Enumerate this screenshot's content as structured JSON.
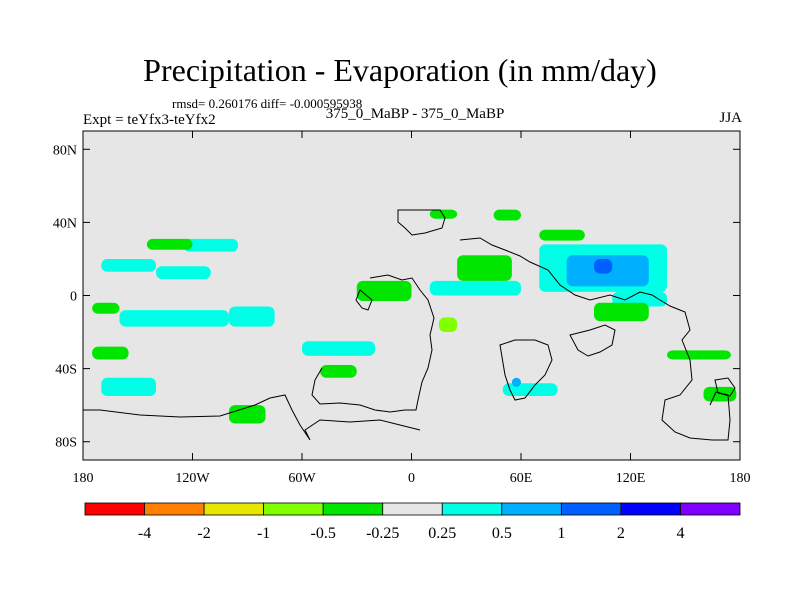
{
  "chart_data": {
    "type": "filled contour map",
    "title": "Precipitation - Evaporation (in mm/day)",
    "stats_label": "rmsd= 0.260176 diff= -0.000595938",
    "left_label": "Expt = teYfx3-teYfx2",
    "center_label": "375_0_MaBP - 375_0_MaBP",
    "right_label": "JJA",
    "xlim": [
      -180,
      180
    ],
    "ylim": [
      -90,
      90
    ],
    "x_ticks": [
      {
        "value": -180,
        "label": "180"
      },
      {
        "value": -120,
        "label": "120W"
      },
      {
        "value": -60,
        "label": "60W"
      },
      {
        "value": 0,
        "label": "0"
      },
      {
        "value": 60,
        "label": "60E"
      },
      {
        "value": 120,
        "label": "120E"
      },
      {
        "value": 180,
        "label": "180"
      }
    ],
    "y_ticks": [
      {
        "value": 80,
        "label": "80N"
      },
      {
        "value": 40,
        "label": "40N"
      },
      {
        "value": 0,
        "label": "0"
      },
      {
        "value": -40,
        "label": "40S"
      },
      {
        "value": -80,
        "label": "80S"
      }
    ],
    "colorbar": {
      "levels": [
        "-4",
        "-2",
        "-1",
        "-0.5",
        "-0.25",
        "0.25",
        "0.5",
        "1",
        "2",
        "4"
      ],
      "colors": [
        "#ff0000",
        "#ff8000",
        "#e6e600",
        "#80ff00",
        "#00e600",
        "#e6e6e6",
        "#00ffe6",
        "#00b0ff",
        "#0060ff",
        "#0000ff",
        "#8000ff"
      ]
    },
    "background_color": "#e6e6e6",
    "coastline_color": "#000000",
    "regions": [
      {
        "level": "0.25 to 0.5",
        "lon": [
          -170,
          -140
        ],
        "lat": [
          13,
          20
        ]
      },
      {
        "level": "0.25 to 0.5",
        "lon": [
          -140,
          -110
        ],
        "lat": [
          9,
          16
        ]
      },
      {
        "level": "0.25 to 0.5",
        "lon": [
          -125,
          -95
        ],
        "lat": [
          24,
          31
        ]
      },
      {
        "level": "0.25 to 0.5",
        "lon": [
          -160,
          -100
        ],
        "lat": [
          -17,
          -8
        ]
      },
      {
        "level": "0.25 to 0.5",
        "lon": [
          -100,
          -75
        ],
        "lat": [
          -17,
          -6
        ]
      },
      {
        "level": "0.25 to 0.5",
        "lon": [
          -60,
          -20
        ],
        "lat": [
          -33,
          -25
        ]
      },
      {
        "level": "0.25 to 0.5",
        "lon": [
          10,
          60
        ],
        "lat": [
          0,
          8
        ]
      },
      {
        "level": "0.25 to 0.5",
        "lon": [
          70,
          140
        ],
        "lat": [
          2,
          28
        ]
      },
      {
        "level": "0.25 to 0.5",
        "lon": [
          110,
          140
        ],
        "lat": [
          -6,
          2
        ]
      },
      {
        "level": "0.25 to 0.5",
        "lon": [
          -170,
          -140
        ],
        "lat": [
          -55,
          -45
        ]
      },
      {
        "level": "0.25 to 0.5",
        "lon": [
          50,
          80
        ],
        "lat": [
          -55,
          -48
        ]
      },
      {
        "level": "0.5 to 1",
        "lon": [
          85,
          130
        ],
        "lat": [
          5,
          22
        ]
      },
      {
        "level": "0.5 to 1",
        "lon": [
          55,
          60
        ],
        "lat": [
          -50,
          -45
        ]
      },
      {
        "level": "1 to 2",
        "lon": [
          100,
          110
        ],
        "lat": [
          12,
          20
        ]
      },
      {
        "level": "-0.5 to -0.25",
        "lon": [
          -145,
          -120
        ],
        "lat": [
          25,
          31
        ]
      },
      {
        "level": "-0.5 to -0.25",
        "lon": [
          -175,
          -160
        ],
        "lat": [
          -10,
          -4
        ]
      },
      {
        "level": "-0.5 to -0.25",
        "lon": [
          -175,
          -155
        ],
        "lat": [
          -35,
          -28
        ]
      },
      {
        "level": "-0.5 to -0.25",
        "lon": [
          10,
          25
        ],
        "lat": [
          42,
          47
        ]
      },
      {
        "level": "-0.5 to -0.25",
        "lon": [
          45,
          60
        ],
        "lat": [
          41,
          47
        ]
      },
      {
        "level": "-0.5 to -0.25",
        "lon": [
          25,
          55
        ],
        "lat": [
          8,
          22
        ]
      },
      {
        "level": "-0.5 to -0.25",
        "lon": [
          -30,
          0
        ],
        "lat": [
          -3,
          8
        ]
      },
      {
        "level": "-0.5 to -0.25",
        "lon": [
          70,
          95
        ],
        "lat": [
          30,
          36
        ]
      },
      {
        "level": "-0.5 to -0.25",
        "lon": [
          100,
          130
        ],
        "lat": [
          -14,
          -4
        ]
      },
      {
        "level": "-0.5 to -0.25",
        "lon": [
          140,
          175
        ],
        "lat": [
          -35,
          -30
        ]
      },
      {
        "level": "-0.5 to -0.25",
        "lon": [
          -50,
          -30
        ],
        "lat": [
          -45,
          -38
        ]
      },
      {
        "level": "-0.5 to -0.25",
        "lon": [
          -100,
          -80
        ],
        "lat": [
          -70,
          -60
        ]
      },
      {
        "level": "-0.5 to -0.25",
        "lon": [
          160,
          178
        ],
        "lat": [
          -58,
          -50
        ]
      },
      {
        "level": "-1 to -0.5",
        "lon": [
          15,
          25
        ],
        "lat": [
          -20,
          -12
        ]
      }
    ]
  }
}
